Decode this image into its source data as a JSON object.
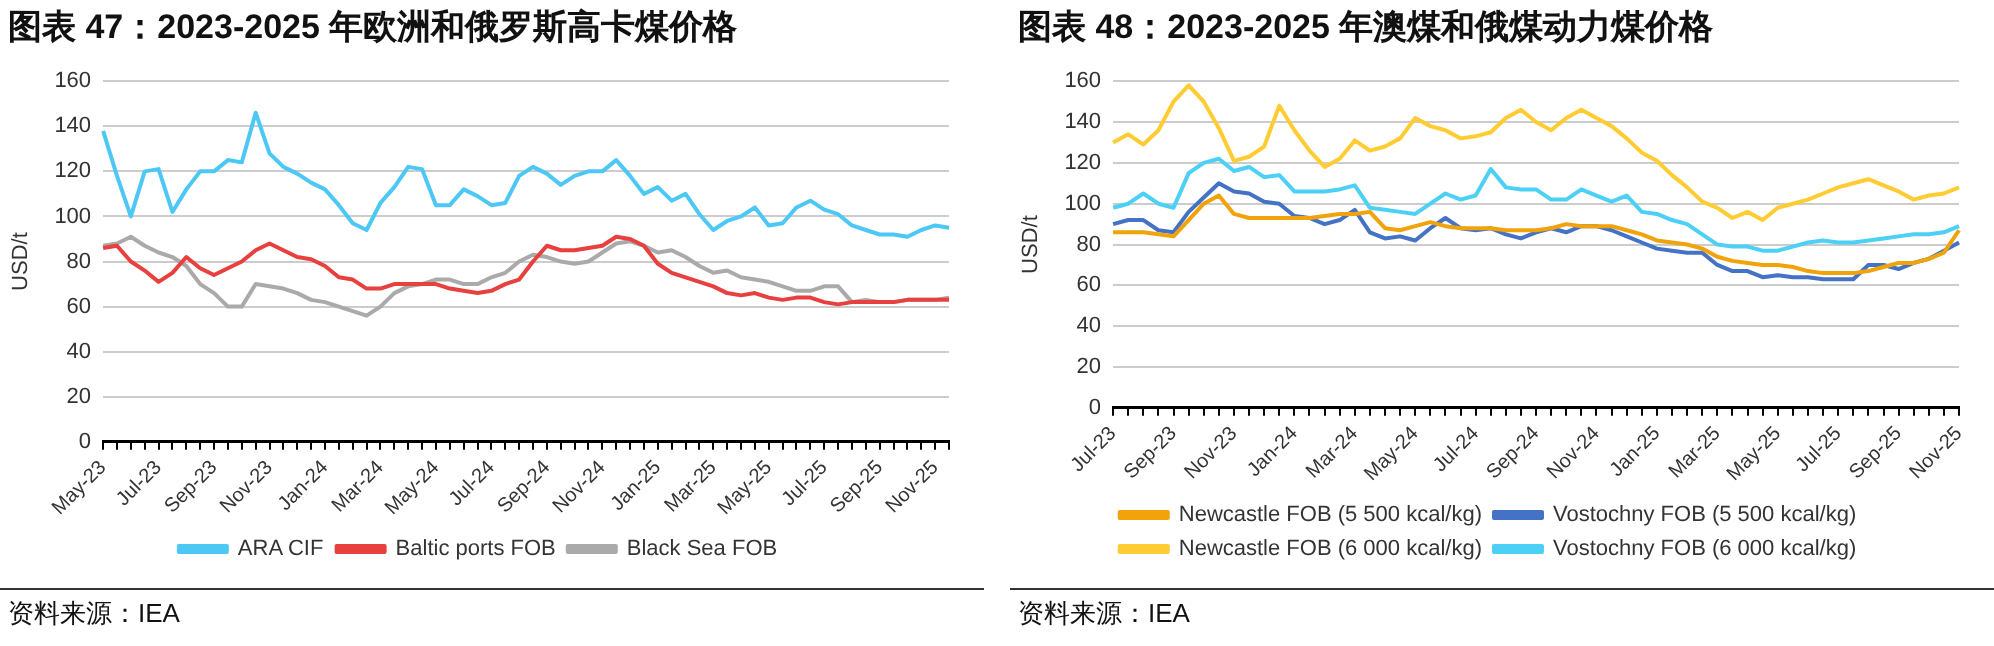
{
  "chart_data": [
    {
      "type": "line",
      "title": "图表 47：2023-2025 年欧洲和俄罗斯高卡煤价格",
      "ylabel": "USD/t",
      "annotations": [
        "资料来源：IEA"
      ],
      "categories": [
        "May-23",
        null,
        null,
        null,
        "Jul-23",
        null,
        null,
        null,
        "Sep-23",
        null,
        null,
        null,
        "Nov-23",
        null,
        null,
        null,
        "Jan-24",
        null,
        null,
        null,
        "Mar-24",
        null,
        null,
        null,
        "May-24",
        null,
        null,
        null,
        "Jul-24",
        null,
        null,
        null,
        "Sep-24",
        null,
        null,
        null,
        "Nov-24",
        null,
        null,
        null,
        "Jan-25",
        null,
        null,
        null,
        "Mar-25",
        null,
        null,
        null,
        "May-25",
        null,
        null,
        null,
        "Jul-25",
        null,
        null,
        null,
        "Sep-25",
        null,
        null,
        null,
        "Nov-25",
        null
      ],
      "series": [
        {
          "name": "ARA CIF",
          "color": "#4dc8f5",
          "values": [
            138,
            118,
            100,
            120,
            121,
            102,
            112,
            120,
            120,
            125,
            124,
            146,
            128,
            122,
            119,
            115,
            112,
            105,
            97,
            94,
            106,
            113,
            122,
            121,
            105,
            105,
            112,
            109,
            105,
            106,
            118,
            122,
            119,
            114,
            118,
            120,
            120,
            125,
            118,
            110,
            113,
            107,
            110,
            101,
            94,
            98,
            100,
            104,
            96,
            97,
            104,
            107,
            103,
            101,
            96,
            94,
            92,
            92,
            91,
            94,
            96,
            95
          ]
        },
        {
          "name": "Baltic ports FOB",
          "color": "#e8403f",
          "values": [
            86,
            87,
            80,
            76,
            71,
            75,
            82,
            77,
            74,
            77,
            80,
            85,
            88,
            85,
            82,
            81,
            78,
            73,
            72,
            68,
            68,
            70,
            70,
            70,
            70,
            68,
            67,
            66,
            67,
            70,
            72,
            80,
            87,
            85,
            85,
            86,
            87,
            91,
            90,
            87,
            79,
            75,
            73,
            71,
            69,
            66,
            65,
            66,
            64,
            63,
            64,
            64,
            62,
            61,
            62,
            62,
            62,
            62,
            63,
            63,
            63,
            63
          ]
        },
        {
          "name": "Black Sea FOB",
          "color": "#aaaaaa",
          "values": [
            87,
            88,
            91,
            87,
            84,
            82,
            78,
            70,
            66,
            60,
            60,
            70,
            69,
            68,
            66,
            63,
            62,
            60,
            58,
            56,
            60,
            66,
            69,
            70,
            72,
            72,
            70,
            70,
            73,
            75,
            80,
            83,
            82,
            80,
            79,
            80,
            84,
            88,
            89,
            87,
            84,
            85,
            82,
            78,
            75,
            76,
            73,
            72,
            71,
            69,
            67,
            67,
            69,
            69,
            62,
            63,
            62,
            62,
            63,
            63,
            63,
            64
          ]
        }
      ],
      "ylim": [
        0,
        160
      ],
      "yticks": [
        0,
        20,
        40,
        60,
        80,
        100,
        120,
        140,
        160
      ],
      "grid": "y",
      "legend": "bottom"
    },
    {
      "type": "line",
      "title": "图表 48：2023-2025 年澳煤和俄煤动力煤价格",
      "ylabel": "USD/t",
      "annotations": [
        "资料来源：IEA"
      ],
      "categories": [
        "Jul-23",
        null,
        null,
        null,
        "Sep-23",
        null,
        null,
        null,
        "Nov-23",
        null,
        null,
        null,
        "Jan-24",
        null,
        null,
        null,
        "Mar-24",
        null,
        null,
        null,
        "May-24",
        null,
        null,
        null,
        "Jul-24",
        null,
        null,
        null,
        "Sep-24",
        null,
        null,
        null,
        "Nov-24",
        null,
        null,
        null,
        "Jan-25",
        null,
        null,
        null,
        "Mar-25",
        null,
        null,
        null,
        "May-25",
        null,
        null,
        null,
        "Jul-25",
        null,
        null,
        null,
        "Sep-25",
        null,
        null,
        null,
        "Nov-25"
      ],
      "series": [
        {
          "name": "Newcastle FOB (5 500 kcal/kg)",
          "color": "#f0a30a",
          "values": [
            86,
            86,
            86,
            85,
            84,
            92,
            100,
            104,
            95,
            93,
            93,
            93,
            93,
            93,
            94,
            95,
            95,
            96,
            88,
            87,
            89,
            91,
            89,
            88,
            88,
            88,
            87,
            87,
            87,
            88,
            90,
            89,
            89,
            89,
            87,
            85,
            82,
            81,
            80,
            78,
            74,
            72,
            71,
            70,
            70,
            69,
            67,
            66,
            66,
            66,
            67,
            69,
            71,
            71,
            73,
            76,
            87
          ]
        },
        {
          "name": "Vostochny FOB (5 500 kcal/kg)",
          "color": "#4472c4",
          "values": [
            90,
            92,
            92,
            87,
            86,
            96,
            103,
            110,
            106,
            105,
            101,
            100,
            94,
            93,
            90,
            92,
            97,
            86,
            83,
            84,
            82,
            88,
            93,
            88,
            87,
            88,
            85,
            83,
            86,
            88,
            86,
            89,
            89,
            87,
            84,
            81,
            78,
            77,
            76,
            76,
            70,
            67,
            67,
            64,
            65,
            64,
            64,
            63,
            63,
            63,
            70,
            70,
            68,
            71,
            73,
            77,
            81
          ]
        },
        {
          "name": "Newcastle FOB (6 000 kcal/kg)",
          "color": "#ffcc33",
          "values": [
            130,
            134,
            129,
            136,
            150,
            158,
            150,
            137,
            121,
            123,
            128,
            148,
            136,
            126,
            118,
            122,
            131,
            126,
            128,
            132,
            142,
            138,
            136,
            132,
            133,
            135,
            142,
            146,
            140,
            136,
            142,
            146,
            142,
            138,
            132,
            125,
            121,
            114,
            108,
            101,
            98,
            93,
            96,
            92,
            98,
            100,
            102,
            105,
            108,
            110,
            112,
            109,
            106,
            102,
            104,
            105,
            108
          ]
        },
        {
          "name": "Vostochny FOB (6 000 kcal/kg)",
          "color": "#4dd0f5",
          "values": [
            98,
            100,
            105,
            100,
            98,
            115,
            120,
            122,
            116,
            118,
            113,
            114,
            106,
            106,
            106,
            107,
            109,
            98,
            97,
            96,
            95,
            100,
            105,
            102,
            104,
            117,
            108,
            107,
            107,
            102,
            102,
            107,
            104,
            101,
            104,
            96,
            95,
            92,
            90,
            85,
            80,
            79,
            79,
            77,
            77,
            79,
            81,
            82,
            81,
            81,
            82,
            83,
            84,
            85,
            85,
            86,
            89
          ]
        }
      ],
      "ylim": [
        0,
        160
      ],
      "yticks": [
        0,
        20,
        40,
        60,
        80,
        100,
        120,
        140,
        160
      ],
      "grid": "y",
      "legend": "bottom"
    }
  ]
}
